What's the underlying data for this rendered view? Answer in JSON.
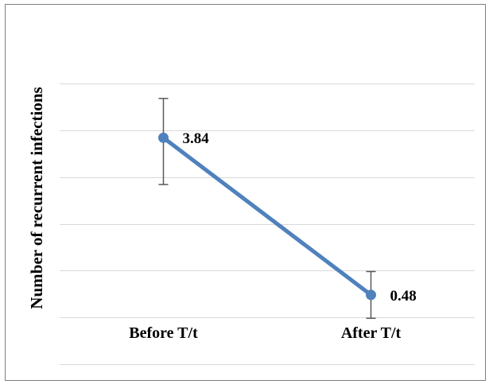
{
  "chart_data": {
    "type": "line",
    "title": "",
    "xlabel": "",
    "ylabel": "Number of recurrent infections",
    "categories": [
      "Before T/t",
      "After T/t"
    ],
    "values": [
      3.84,
      0.48
    ],
    "error_low": [
      2.84,
      -0.02
    ],
    "error_high": [
      4.68,
      0.98
    ],
    "data_labels": [
      "3.84",
      "0.48"
    ],
    "ylim": [
      -1,
      5
    ],
    "y_gridline_step": 1,
    "grid": true,
    "y_tick_labels_shown": false,
    "legend": "none",
    "colors": {
      "line": "#4f81bd",
      "grid": "#d9d9d9",
      "error_bar": "#595959"
    }
  }
}
